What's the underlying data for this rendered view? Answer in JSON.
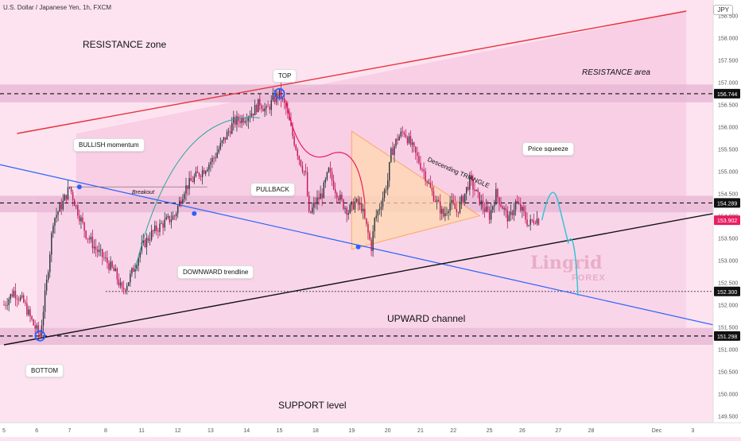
{
  "ticker": "U.S. Dollar / Japanese Yen, 1h, FXCM",
  "currency": "JPY",
  "colors": {
    "background": "#fde3f0",
    "zone": "#e7b7d5",
    "resistance_line": "#e8323c",
    "downtrend_line": "#2962ff",
    "support_line": "#111111",
    "up_candle": "#2f3640",
    "down_candle": "#c2185b",
    "triangle_fill": "#ffd9b0",
    "triangle_line": "#ff9a3c",
    "badge_red": "#e91e63",
    "badge_black": "#111111"
  },
  "annotations": {
    "resistance_zone": "RESISTANCE zone",
    "resistance_area": "RESISTANCE area",
    "top": "TOP",
    "bottom": "BOTTOM",
    "bullish_momentum": "BULLISH momentum",
    "breakout": "Breakout",
    "pullback": "PULLBACK",
    "descending_triangle": "Descending TRIANGLE",
    "price_squeeze": "Price squeeze",
    "downward_trendline": "DOWNWARD trendline",
    "upward_channel": "UPWARD channel",
    "support_level": "SUPPORT level"
  },
  "watermark": {
    "brand": "Lingrid",
    "sub": "FOREX"
  },
  "chart_data": {
    "type": "candlestick",
    "y_axis": {
      "ticks": [
        158.5,
        158.0,
        157.5,
        157.0,
        156.5,
        156.0,
        155.5,
        155.0,
        154.5,
        154.0,
        153.5,
        153.0,
        152.5,
        152.0,
        151.5,
        151.0,
        150.5,
        150.0,
        149.5
      ],
      "tick_labels": [
        "158.500",
        "158.000",
        "157.500",
        "157.000",
        "156.500",
        "156.000",
        "155.500",
        "155.000",
        "154.500",
        "154.000",
        "153.500",
        "153.000",
        "152.500",
        "152.000",
        "151.500",
        "151.000",
        "150.500",
        "150.000",
        "149.500"
      ],
      "range": [
        149.35,
        158.85
      ]
    },
    "x_axis": {
      "labels": [
        "5",
        "6",
        "7",
        "8",
        "11",
        "12",
        "13",
        "14",
        "15",
        "18",
        "19",
        "20",
        "21",
        "22",
        "25",
        "26",
        "27",
        "28",
        "Dec",
        "3"
      ],
      "label_index": [
        0,
        10,
        20,
        31,
        42,
        53,
        63,
        74,
        84,
        95,
        106,
        117,
        127,
        137,
        148,
        158,
        169,
        179,
        199,
        210
      ],
      "range_index": [
        0,
        215
      ]
    },
    "price_badges": [
      {
        "value": 156.744,
        "label": "156.744",
        "style": "black"
      },
      {
        "value": 154.289,
        "label": "154.289",
        "style": "black"
      },
      {
        "value": 153.902,
        "label": "153.902",
        "style": "red"
      },
      {
        "value": 152.3,
        "label": "152.300",
        "style": "black"
      },
      {
        "value": 151.298,
        "label": "151.298",
        "style": "black"
      }
    ],
    "zones": [
      {
        "from": 156.55,
        "to": 156.95
      },
      {
        "from": 154.08,
        "to": 154.45
      },
      {
        "from": 151.1,
        "to": 151.48
      }
    ],
    "close_path": [
      [
        0,
        152.0
      ],
      [
        3,
        152.3
      ],
      [
        6,
        152.05
      ],
      [
        9,
        151.55
      ],
      [
        11,
        151.3
      ],
      [
        13,
        152.5
      ],
      [
        15,
        153.9
      ],
      [
        18,
        154.3
      ],
      [
        20,
        154.65
      ],
      [
        22,
        154.2
      ],
      [
        25,
        153.6
      ],
      [
        28,
        153.25
      ],
      [
        31,
        153.0
      ],
      [
        34,
        152.7
      ],
      [
        36,
        152.3
      ],
      [
        38,
        152.55
      ],
      [
        40,
        152.9
      ],
      [
        42,
        153.3
      ],
      [
        45,
        153.6
      ],
      [
        48,
        153.8
      ],
      [
        52,
        154.0
      ],
      [
        55,
        154.6
      ],
      [
        58,
        154.85
      ],
      [
        61,
        155.05
      ],
      [
        64,
        155.3
      ],
      [
        67,
        155.7
      ],
      [
        70,
        156.1
      ],
      [
        73,
        156.2
      ],
      [
        76,
        156.35
      ],
      [
        78,
        156.55
      ],
      [
        80,
        156.35
      ],
      [
        82,
        156.6
      ],
      [
        84,
        156.75
      ],
      [
        86,
        156.4
      ],
      [
        88,
        155.8
      ],
      [
        90,
        155.3
      ],
      [
        92,
        154.9
      ],
      [
        93,
        154.0
      ],
      [
        95,
        154.3
      ],
      [
        97,
        154.5
      ],
      [
        99,
        155.0
      ],
      [
        101,
        154.6
      ],
      [
        103,
        154.3
      ],
      [
        105,
        154.1
      ],
      [
        107,
        154.3
      ],
      [
        109,
        154.2
      ],
      [
        111,
        153.6
      ],
      [
        112,
        153.3
      ],
      [
        113,
        153.9
      ],
      [
        115,
        154.3
      ],
      [
        117,
        154.8
      ],
      [
        118,
        155.4
      ],
      [
        120,
        155.75
      ],
      [
        122,
        155.9
      ],
      [
        124,
        155.6
      ],
      [
        126,
        155.3
      ],
      [
        128,
        155.0
      ],
      [
        130,
        154.6
      ],
      [
        132,
        154.3
      ],
      [
        134,
        154.0
      ],
      [
        136,
        154.3
      ],
      [
        138,
        154.1
      ],
      [
        140,
        154.4
      ],
      [
        142,
        154.8
      ],
      [
        144,
        154.5
      ],
      [
        146,
        154.2
      ],
      [
        148,
        154.0
      ],
      [
        150,
        154.5
      ],
      [
        152,
        154.2
      ],
      [
        154,
        153.9
      ],
      [
        156,
        154.3
      ],
      [
        158,
        154.1
      ],
      [
        160,
        153.8
      ],
      [
        162,
        153.95
      ],
      [
        163,
        153.9
      ]
    ]
  }
}
